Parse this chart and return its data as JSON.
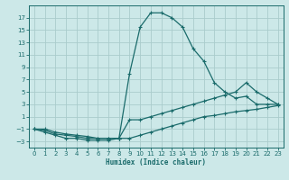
{
  "background_color": "#cce8e8",
  "grid_color": "#aacccc",
  "line_color": "#1a6b6b",
  "xlabel": "Humidex (Indice chaleur)",
  "xlim": [
    -0.5,
    23.5
  ],
  "ylim": [
    -4,
    19
  ],
  "xticks": [
    0,
    1,
    2,
    3,
    4,
    5,
    6,
    7,
    8,
    9,
    10,
    11,
    12,
    13,
    14,
    15,
    16,
    17,
    18,
    19,
    20,
    21,
    22,
    23
  ],
  "yticks": [
    -3,
    -1,
    1,
    3,
    5,
    7,
    9,
    11,
    13,
    15,
    17
  ],
  "series": [
    {
      "x": [
        0,
        1,
        2,
        3,
        4,
        5,
        6,
        7,
        8,
        9,
        10,
        11,
        12,
        13,
        14,
        15,
        16,
        17,
        18,
        19,
        20,
        21,
        22,
        23
      ],
      "y": [
        -1,
        -1.5,
        -2,
        -2.5,
        -2.5,
        -2.8,
        -2.8,
        -2.8,
        -2.5,
        8,
        15.5,
        17.8,
        17.8,
        17,
        15.5,
        12,
        10,
        6.5,
        5,
        4,
        4.3,
        3,
        3,
        3
      ]
    },
    {
      "x": [
        0,
        1,
        2,
        3,
        4,
        5,
        6,
        7,
        8,
        9,
        10,
        11,
        12,
        13,
        14,
        15,
        16,
        17,
        18,
        19,
        20,
        21,
        22,
        23
      ],
      "y": [
        -1,
        -1.2,
        -1.8,
        -2,
        -2.2,
        -2.5,
        -2.5,
        -2.5,
        -2.5,
        0.5,
        0.5,
        1,
        1.5,
        2,
        2.5,
        3,
        3.5,
        4,
        4.5,
        5,
        6.5,
        5,
        4,
        3
      ]
    },
    {
      "x": [
        0,
        1,
        2,
        3,
        4,
        5,
        6,
        7,
        8,
        9,
        10,
        11,
        12,
        13,
        14,
        15,
        16,
        17,
        18,
        19,
        20,
        21,
        22,
        23
      ],
      "y": [
        -1,
        -1,
        -1.5,
        -1.8,
        -2,
        -2.2,
        -2.5,
        -2.5,
        -2.5,
        -2.5,
        -2,
        -1.5,
        -1,
        -0.5,
        0,
        0.5,
        1,
        1.2,
        1.5,
        1.8,
        2,
        2.2,
        2.5,
        2.8
      ]
    }
  ]
}
